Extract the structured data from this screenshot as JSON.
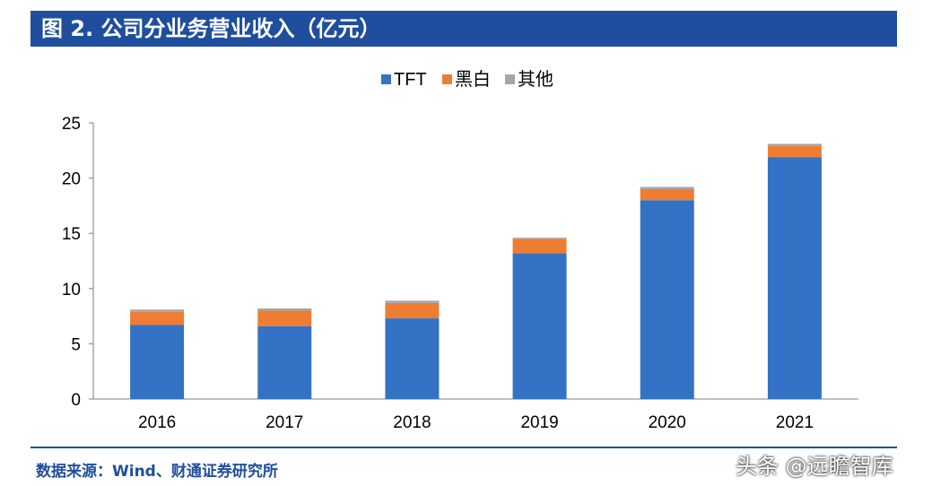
{
  "header": {
    "title": "图 2. 公司分业务营业收入（亿元）"
  },
  "footer": {
    "source": "数据来源：Wind、财通证券研究所",
    "watermark": "头条 @远瞻智库"
  },
  "colors": {
    "TFT": "#3372c4",
    "黑白": "#ee7d31",
    "其他": "#a5a5a5",
    "accent": "#1f4e9e"
  },
  "chart_data": {
    "type": "bar",
    "stacked": true,
    "categories": [
      "2016",
      "2017",
      "2018",
      "2019",
      "2020",
      "2021"
    ],
    "series": [
      {
        "name": "TFT",
        "values": [
          6.7,
          6.6,
          7.3,
          13.2,
          18.0,
          21.9
        ]
      },
      {
        "name": "黑白",
        "values": [
          1.2,
          1.4,
          1.4,
          1.3,
          1.0,
          1.0
        ]
      },
      {
        "name": "其他",
        "values": [
          0.2,
          0.2,
          0.2,
          0.1,
          0.2,
          0.2
        ]
      }
    ],
    "yticks": [
      "0",
      "5",
      "10",
      "15",
      "20",
      "25"
    ],
    "ylim": [
      0,
      25
    ],
    "legend_position": "top-center",
    "grid": false
  }
}
